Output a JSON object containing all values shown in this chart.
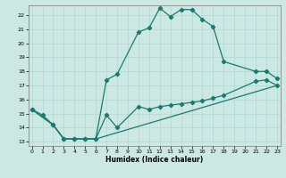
{
  "xlabel": "Humidex (Indice chaleur)",
  "bg_color": "#cce8e3",
  "grid_color": "#aad4ce",
  "line_color": "#1a7a6e",
  "xlim": [
    -0.3,
    23.3
  ],
  "ylim": [
    12.7,
    22.7
  ],
  "xticks": [
    0,
    1,
    2,
    3,
    4,
    5,
    6,
    7,
    8,
    9,
    10,
    11,
    12,
    13,
    14,
    15,
    16,
    17,
    18,
    19,
    20,
    21,
    22,
    23
  ],
  "yticks": [
    13,
    14,
    15,
    16,
    17,
    18,
    19,
    20,
    21,
    22
  ],
  "curve1_x": [
    0,
    1,
    2,
    3,
    4,
    5,
    6,
    7,
    8,
    10,
    11,
    12,
    13,
    14,
    15,
    16,
    17,
    18,
    21,
    22,
    23
  ],
  "curve1_y": [
    15.3,
    14.9,
    14.2,
    13.2,
    13.2,
    13.2,
    13.2,
    17.4,
    17.8,
    20.8,
    21.1,
    22.5,
    21.9,
    22.4,
    22.4,
    21.7,
    21.2,
    18.7,
    18.0,
    18.0,
    17.5
  ],
  "curve2_x": [
    0,
    2,
    3,
    4,
    5,
    6,
    7,
    8,
    10,
    11,
    12,
    13,
    14,
    15,
    16,
    17,
    18,
    21,
    22,
    23
  ],
  "curve2_y": [
    15.3,
    14.2,
    13.2,
    13.2,
    13.2,
    13.2,
    14.9,
    14.0,
    15.5,
    15.3,
    15.5,
    15.6,
    15.7,
    15.8,
    15.9,
    16.1,
    16.3,
    17.3,
    17.4,
    17.0
  ],
  "curve3_x": [
    0,
    2,
    3,
    4,
    5,
    6,
    23
  ],
  "curve3_y": [
    15.3,
    14.2,
    13.2,
    13.2,
    13.2,
    13.2,
    17.0
  ]
}
